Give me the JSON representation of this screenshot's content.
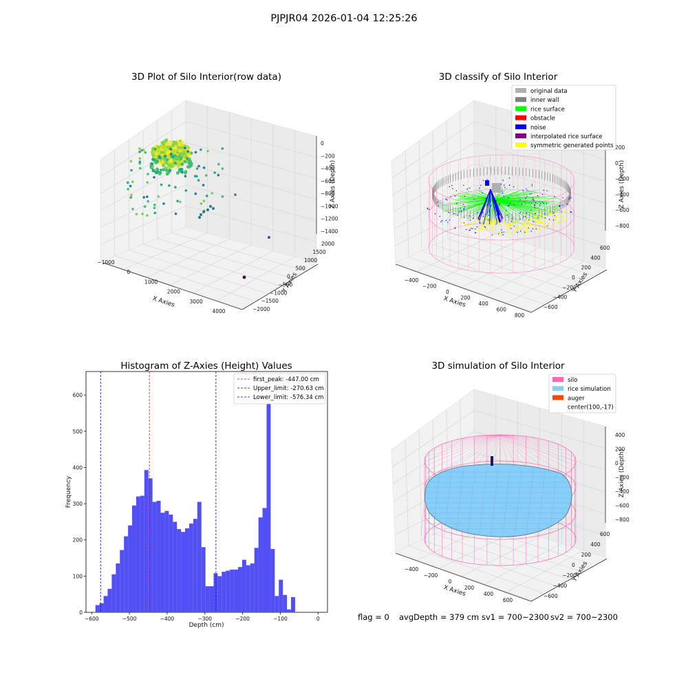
{
  "suptitle": "PJPJR04 2026-01-04 12:25:26",
  "colors": {
    "original": "#b0b0b0",
    "inner_wall": "#808080",
    "rice_surface": "#00ff00",
    "obstacle": "#ff0000",
    "noise": "#0000ff",
    "interpolated": "#800080",
    "symmetric": "#ffff00",
    "hist_bar": "#5050f5",
    "silo": "#ff69b4",
    "rice_sim": "#87cefa",
    "auger": "#ff4500",
    "peak_line": "#ff0000",
    "limit_line": "#0000ff"
  },
  "panel1": {
    "title": "3D Plot of Silo Interior(row data)",
    "xlabel": "X Axies",
    "ylabel": "Y Axies",
    "zlabel": "Z Axies (Depth)",
    "xticks": [
      "−1000",
      "0",
      "1000",
      "2000",
      "3000",
      "4000"
    ],
    "yticks": [
      "−2000",
      "−1500",
      "−1000",
      "−500",
      "0",
      "500",
      "1000",
      "1500",
      "2000"
    ],
    "zticks": [
      "0",
      "−200",
      "−400",
      "−600",
      "−800",
      "−1000",
      "−1200",
      "−1400"
    ]
  },
  "panel2": {
    "title": "3D classify of Silo Interior",
    "xlabel": "X Axies",
    "ylabel": "Y Axies",
    "zlabel": "Z Axies (Depth)",
    "xticks": [
      "−400",
      "−200",
      "0",
      "200",
      "400",
      "600",
      "800"
    ],
    "yticks": [
      "−600",
      "−400",
      "−200",
      "0",
      "200",
      "400",
      "600"
    ],
    "zticks": [
      "200",
      "0",
      "−200",
      "−400",
      "−600",
      "−800"
    ],
    "legend": [
      "original data",
      "inner wall",
      "rice surface",
      "obstacle",
      "noise",
      "interpolated rice surface",
      "symmetric generated points"
    ]
  },
  "panel4": {
    "title": "3D simulation of Silo Interior",
    "xlabel": "X Axies",
    "ylabel": "Y Axies",
    "zlabel": "Z Axies (Depth)",
    "xticks": [
      "−400",
      "−200",
      "0",
      "200",
      "400",
      "600"
    ],
    "yticks": [
      "−600",
      "−400",
      "−200",
      "0",
      "200",
      "400",
      "600"
    ],
    "zticks": [
      "400",
      "200",
      "0",
      "−200",
      "−400",
      "−600",
      "−800"
    ],
    "legend": [
      "silo",
      "rice simulation",
      "auger",
      "center(100,-17)"
    ]
  },
  "status": {
    "flag": "flag = 0",
    "avg": "avgDepth = 379 cm",
    "sv1": "sv1 = 700~2300",
    "sv2": "sv2 = 700~2300"
  },
  "chart_data": {
    "type": "bar",
    "title": "Histogram of Z-Axies (Height) Values",
    "xlabel": "Depth (cm)",
    "ylabel": "Frequency",
    "xlim": [
      -615,
      25
    ],
    "ylim": [
      0,
      665
    ],
    "xticks": [
      -600,
      -500,
      -400,
      -300,
      -200,
      -100,
      0
    ],
    "xtick_labels": [
      "−600",
      "−500",
      "−400",
      "−300",
      "−200",
      "−100",
      "0"
    ],
    "yticks": [
      0,
      100,
      200,
      300,
      400,
      500,
      600
    ],
    "bin_start": -590,
    "bin_width": 10.8,
    "values": [
      20,
      25,
      45,
      65,
      105,
      135,
      172,
      210,
      240,
      295,
      320,
      322,
      393,
      370,
      305,
      308,
      275,
      280,
      270,
      250,
      230,
      222,
      232,
      245,
      258,
      305,
      180,
      72,
      72,
      108,
      100,
      112,
      115,
      118,
      118,
      125,
      145,
      130,
      135,
      178,
      262,
      288,
      620,
      175,
      45,
      90,
      48,
      8,
      42
    ],
    "vlines": [
      {
        "x": -447.0,
        "label": "first_peak: -447.00 cm",
        "color": "#ff0000"
      },
      {
        "x": -270.63,
        "label": "Upper_limit: -270.63 cm",
        "color": "#0000ff"
      },
      {
        "x": -576.34,
        "label": "Lower_limit: -576.34 cm",
        "color": "#0000ff"
      }
    ],
    "legend_position": "upper right"
  }
}
